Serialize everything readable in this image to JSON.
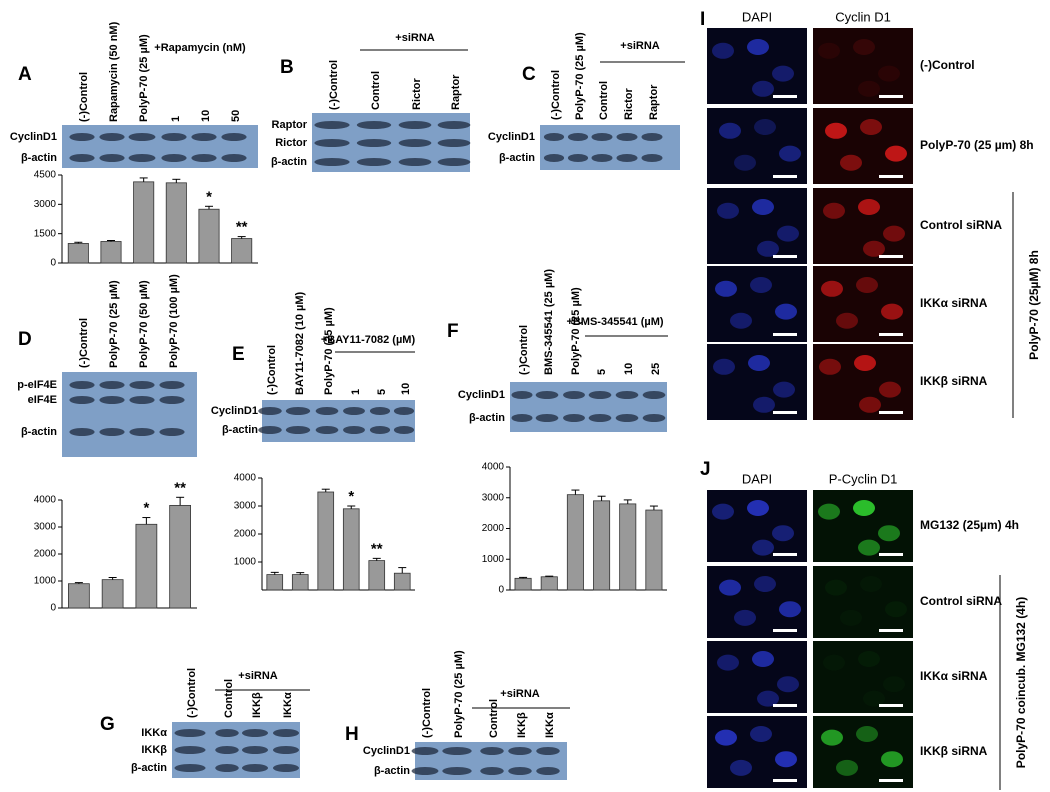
{
  "chart_data": [
    {
      "type": "bar",
      "panel": "A",
      "categories": [
        "(-)Control",
        "Rapamycin (50 nM)",
        "PolyP-70 (25 µM)",
        "1",
        "10",
        "50"
      ],
      "group_label": "+Rapamycin (nM)",
      "bands": [
        "CyclinD1",
        "β-actin"
      ],
      "values": [
        1000,
        1100,
        4150,
        4100,
        2750,
        1250
      ],
      "errors": [
        60,
        50,
        200,
        180,
        150,
        100
      ],
      "markers": [
        null,
        null,
        null,
        null,
        "*",
        "**"
      ],
      "ylim": [
        0,
        4500
      ],
      "yticks": [
        0,
        1500,
        3000,
        4500
      ],
      "color": "#999999"
    },
    {
      "type": "bar",
      "panel": "D",
      "categories": [
        "(-)Control",
        "PolyP-70 (25 µM)",
        "PolyP-70 (50 µM)",
        "PolyP-70 (100 µM)"
      ],
      "bands": [
        "p-eIF4E",
        "eIF4E",
        "β-actin"
      ],
      "values": [
        900,
        1050,
        3100,
        3800
      ],
      "errors": [
        40,
        80,
        250,
        300
      ],
      "markers": [
        null,
        null,
        "*",
        "**"
      ],
      "ylim": [
        0,
        4000
      ],
      "yticks": [
        0,
        1000,
        2000,
        3000,
        4000
      ],
      "color": "#999999"
    },
    {
      "type": "bar",
      "panel": "E",
      "categories": [
        "(-)Control",
        "BAY11-7082 (10 µM)",
        "PolyP-70 (25 µM)",
        "1",
        "5",
        "10"
      ],
      "group_label": "+BAY11-7082 (µM)",
      "bands": [
        "CyclinD1",
        "β-actin"
      ],
      "values": [
        550,
        550,
        3500,
        2900,
        1050,
        600
      ],
      "errors": [
        80,
        70,
        100,
        100,
        80,
        200
      ],
      "markers": [
        null,
        null,
        null,
        "*",
        "**",
        null
      ],
      "ylim": [
        0,
        4000
      ],
      "yticks": [
        1000,
        2000,
        3000,
        4000
      ],
      "color": "#999999"
    },
    {
      "type": "bar",
      "panel": "F",
      "categories": [
        "(-)Control",
        "BMS-345541 (25 µM)",
        "PolyP-70 (25 µM)",
        "5",
        "10",
        "25"
      ],
      "group_label": "+BMS-345541 (µM)",
      "bands": [
        "CyclinD1",
        "β-actin"
      ],
      "values": [
        380,
        430,
        3100,
        2900,
        2800,
        2600
      ],
      "errors": [
        30,
        20,
        150,
        150,
        130,
        130
      ],
      "ylim": [
        0,
        4000
      ],
      "yticks": [
        0,
        1000,
        2000,
        3000,
        4000
      ],
      "color": "#999999"
    }
  ],
  "blots": [
    {
      "panel": "B",
      "group_label": "+siRNA",
      "lanes": [
        "(-)Control",
        "Control",
        "Rictor",
        "Raptor"
      ],
      "bands": [
        "Raptor",
        "Rictor",
        "β-actin"
      ]
    },
    {
      "panel": "C",
      "group_label": "+siRNA",
      "lanes": [
        "(-)Control",
        "PolyP-70 (25 µM)",
        "Control",
        "Rictor",
        "Raptor"
      ],
      "bands": [
        "CyclinD1",
        "β-actin"
      ]
    },
    {
      "panel": "G",
      "group_label": "+siRNA",
      "lanes": [
        "(-)Control",
        "Control",
        "IKKβ",
        "IKKα"
      ],
      "bands": [
        "IKKα",
        "IKKβ",
        "β-actin"
      ]
    },
    {
      "panel": "H",
      "group_label": "+siRNA",
      "lanes": [
        "(-)Control",
        "PolyP-70 (25 µM)",
        "Control",
        "IKKβ",
        "IKKα"
      ],
      "bands": [
        "CyclinD1",
        "β-actin"
      ]
    }
  ],
  "micrographs": [
    {
      "panel": "I",
      "columns": [
        "DAPI",
        "Cyclin D1"
      ],
      "rows": [
        "(-)Control",
        "PolyP-70 (25 µm) 8h",
        "Control siRNA",
        "IKKα siRNA",
        "IKKβ siRNA"
      ],
      "side_label": "PolyP-70 (25µM) 8h"
    },
    {
      "panel": "J",
      "columns": [
        "DAPI",
        "P-Cyclin D1"
      ],
      "rows": [
        "MG132 (25µm) 4h",
        "Control siRNA",
        "IKKα siRNA",
        "IKKβ siRNA"
      ],
      "side_label": "PolyP-70 coincub. MG132 (4h)"
    }
  ]
}
